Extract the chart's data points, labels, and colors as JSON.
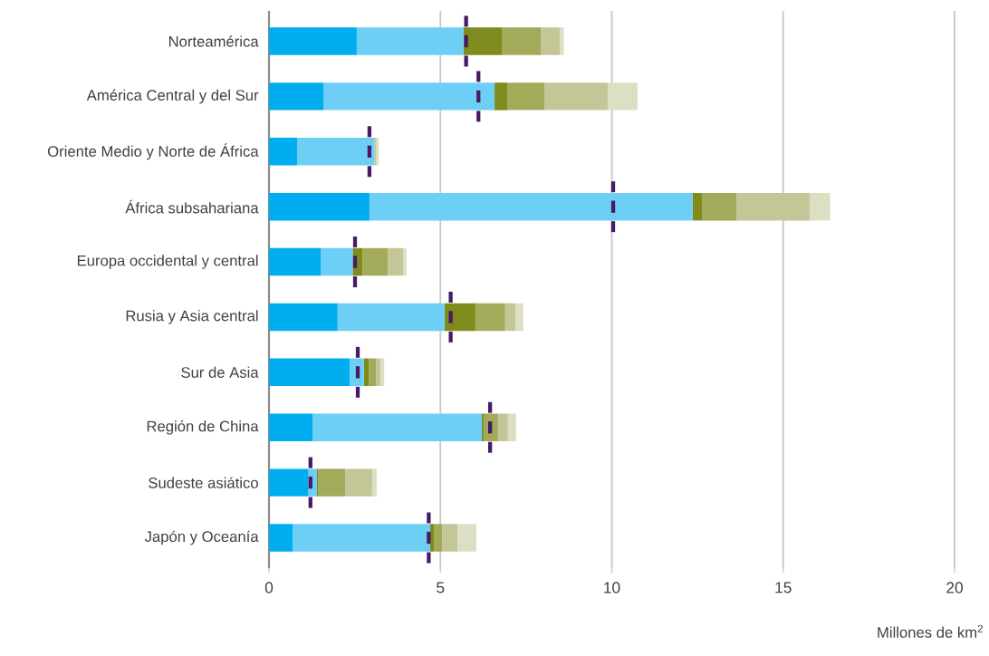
{
  "chart_data": {
    "type": "bar",
    "orientation": "horizontal",
    "stacked": true,
    "categories": [
      "Norteamérica",
      "América Central y del Sur",
      "Oriente Medio y Norte de África",
      "África subsahariana",
      "Europa occidental y central",
      "Rusia y Asia central",
      "Sur de Asia",
      "Región de China",
      "Sudeste asiático",
      "Japón y Oceanía"
    ],
    "series": [
      {
        "color": "#00adef",
        "values": [
          2.56,
          1.59,
          0.82,
          2.93,
          1.51,
          2.0,
          2.35,
          1.27,
          1.15,
          0.69
        ]
      },
      {
        "color": "#6dcff6",
        "values": [
          3.11,
          4.99,
          2.25,
          9.43,
          0.93,
          3.12,
          0.42,
          4.94,
          0.25,
          4.01
        ]
      },
      {
        "color": "#7f8b1d",
        "values": [
          1.12,
          0.37,
          0.0,
          0.27,
          0.29,
          0.9,
          0.14,
          0.05,
          0.03,
          0.11
        ]
      },
      {
        "color": "#a3aa5a",
        "values": [
          1.14,
          1.08,
          0.0,
          1.01,
          0.73,
          0.87,
          0.21,
          0.42,
          0.79,
          0.24
        ]
      },
      {
        "color": "#c5c697",
        "values": [
          0.55,
          1.85,
          0.06,
          2.13,
          0.45,
          0.3,
          0.13,
          0.29,
          0.79,
          0.45
        ]
      },
      {
        "color": "#dddfc4",
        "values": [
          0.12,
          0.87,
          0.07,
          0.6,
          0.1,
          0.23,
          0.11,
          0.24,
          0.13,
          0.55
        ]
      },
      {
        "type": "scatter",
        "line_style": "dashed",
        "color": "#461a66",
        "values": [
          5.75,
          6.11,
          2.93,
          10.04,
          2.51,
          5.3,
          2.59,
          6.45,
          1.21,
          4.66
        ]
      }
    ],
    "xlim": [
      0,
      20
    ],
    "xticks": [
      0,
      5,
      10,
      15,
      20
    ],
    "grid": "x",
    "xlabel": "Millones de km$^{2}$"
  }
}
